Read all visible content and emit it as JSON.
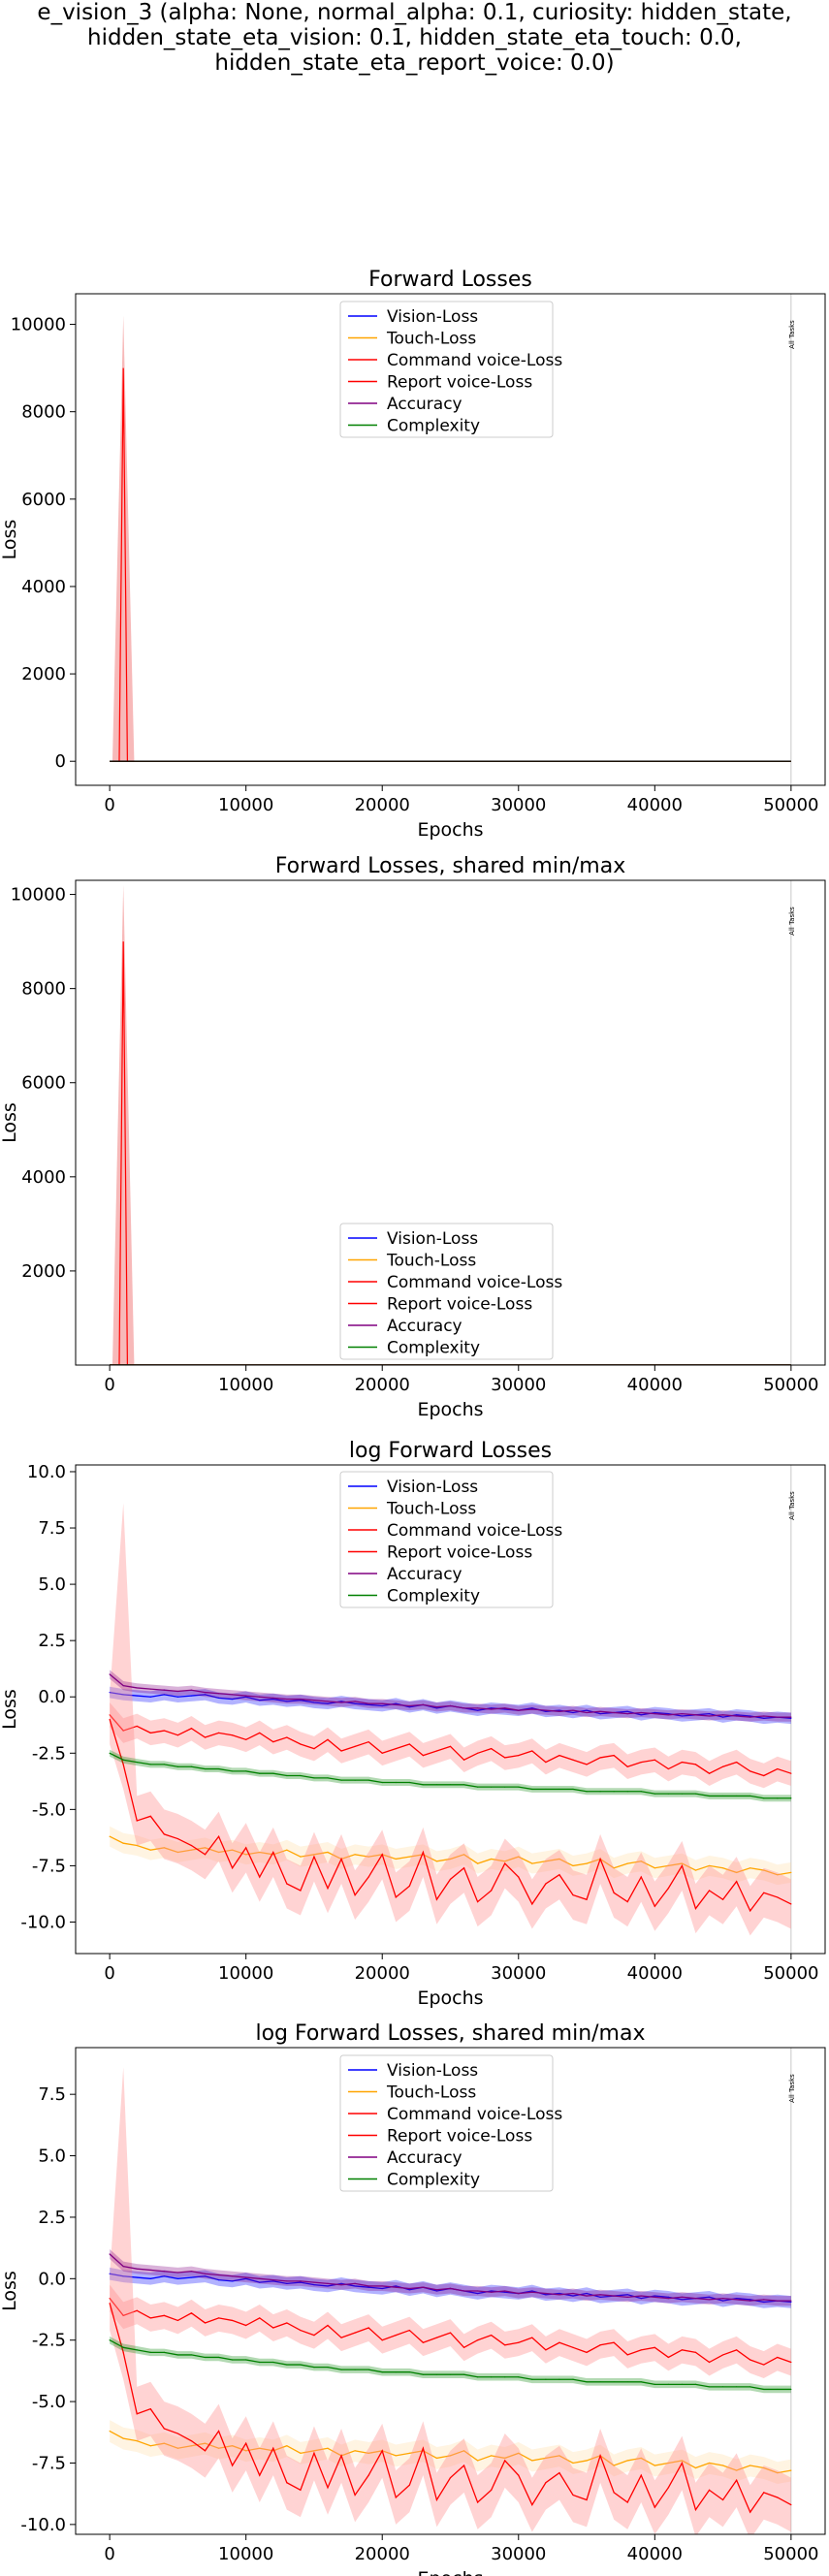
{
  "figure": {
    "suptitle_lines": [
      "e_vision_3 (alpha: None, normal_alpha: 0.1, curiosity: hidden_state,",
      "hidden_state_eta_vision: 0.1, hidden_state_eta_touch: 0.0,",
      "hidden_state_eta_report_voice: 0.0)"
    ]
  },
  "chart_data": [
    {
      "type": "line",
      "title": "Forward Losses",
      "xlabel": "Epochs",
      "ylabel": "Loss",
      "xlim": [
        -2500,
        52500
      ],
      "ylim": [
        -550,
        10700
      ],
      "xticks": [
        0,
        10000,
        20000,
        30000,
        40000,
        50000
      ],
      "yticks": [
        0,
        2000,
        4000,
        6000,
        8000,
        10000
      ],
      "legend_position": "upper center",
      "vline": {
        "x": 49999,
        "label": "All Tasks"
      },
      "series": [
        {
          "name": "Vision-Loss",
          "color": "#0000ff"
        },
        {
          "name": "Touch-Loss",
          "color": "#ffa500"
        },
        {
          "name": "Command voice-Loss",
          "color": "#ff0000"
        },
        {
          "name": "Report voice-Loss",
          "color": "#ff0000"
        },
        {
          "name": "Accuracy",
          "color": "#800080"
        },
        {
          "name": "Complexity",
          "color": "#008000"
        }
      ],
      "spike": {
        "x": 1000,
        "y": 9000,
        "band_high": 10200
      }
    },
    {
      "type": "line",
      "title": "Forward Losses, shared min/max",
      "xlabel": "Epochs",
      "ylabel": "Loss",
      "xlim": [
        -2500,
        52500
      ],
      "ylim": [
        0,
        10300
      ],
      "xticks": [
        0,
        10000,
        20000,
        30000,
        40000,
        50000
      ],
      "yticks": [
        2000,
        4000,
        6000,
        8000,
        10000
      ],
      "legend_position": "lower center",
      "vline": {
        "x": 49999,
        "label": "All Tasks"
      },
      "series": [
        {
          "name": "Vision-Loss",
          "color": "#0000ff"
        },
        {
          "name": "Touch-Loss",
          "color": "#ffa500"
        },
        {
          "name": "Command voice-Loss",
          "color": "#ff0000"
        },
        {
          "name": "Report voice-Loss",
          "color": "#ff0000"
        },
        {
          "name": "Accuracy",
          "color": "#800080"
        },
        {
          "name": "Complexity",
          "color": "#008000"
        }
      ],
      "spike": {
        "x": 1000,
        "y": 9000,
        "band_high": 10200
      }
    },
    {
      "type": "line",
      "title": "log Forward Losses",
      "xlabel": "Epochs",
      "ylabel": "Loss",
      "xlim": [
        -2500,
        52500
      ],
      "ylim": [
        -11.4,
        10.3
      ],
      "xticks": [
        0,
        10000,
        20000,
        30000,
        40000,
        50000
      ],
      "yticks": [
        -10.0,
        -7.5,
        -5.0,
        -2.5,
        0.0,
        2.5,
        5.0,
        7.5,
        10.0
      ],
      "legend_position": "upper center",
      "vline": {
        "x": 49999,
        "label": "All Tasks"
      },
      "x": [
        0,
        1000,
        2000,
        3000,
        4000,
        5000,
        6000,
        7000,
        8000,
        9000,
        10000,
        11000,
        12000,
        13000,
        14000,
        15000,
        16000,
        17000,
        18000,
        19000,
        20000,
        21000,
        22000,
        23000,
        24000,
        25000,
        26000,
        27000,
        28000,
        29000,
        30000,
        31000,
        32000,
        33000,
        34000,
        35000,
        36000,
        37000,
        38000,
        39000,
        40000,
        41000,
        42000,
        43000,
        44000,
        45000,
        46000,
        47000,
        48000,
        49000,
        50000
      ],
      "series": [
        {
          "name": "Vision-Loss",
          "color": "#0000ff",
          "values": [
            0.2,
            0.1,
            0.05,
            0.0,
            0.1,
            0.0,
            0.05,
            0.1,
            -0.05,
            -0.1,
            0.0,
            -0.15,
            -0.1,
            -0.2,
            -0.15,
            -0.25,
            -0.3,
            -0.2,
            -0.3,
            -0.35,
            -0.4,
            -0.3,
            -0.45,
            -0.35,
            -0.5,
            -0.4,
            -0.5,
            -0.6,
            -0.5,
            -0.55,
            -0.6,
            -0.5,
            -0.65,
            -0.6,
            -0.7,
            -0.6,
            -0.75,
            -0.7,
            -0.65,
            -0.8,
            -0.7,
            -0.75,
            -0.85,
            -0.8,
            -0.75,
            -0.9,
            -0.8,
            -0.85,
            -0.95,
            -0.9,
            -0.95
          ]
        },
        {
          "name": "Touch-Loss",
          "color": "#ffa500",
          "values": [
            -6.2,
            -6.5,
            -6.6,
            -6.8,
            -6.7,
            -6.9,
            -6.8,
            -6.7,
            -6.9,
            -6.8,
            -7.0,
            -6.9,
            -7.0,
            -6.8,
            -7.1,
            -7.0,
            -6.9,
            -7.2,
            -7.0,
            -7.1,
            -7.0,
            -7.2,
            -7.1,
            -7.0,
            -7.3,
            -7.2,
            -7.0,
            -7.4,
            -7.2,
            -7.3,
            -7.1,
            -7.4,
            -7.3,
            -7.2,
            -7.5,
            -7.4,
            -7.2,
            -7.6,
            -7.4,
            -7.3,
            -7.6,
            -7.5,
            -7.4,
            -7.7,
            -7.5,
            -7.6,
            -7.8,
            -7.6,
            -7.7,
            -7.9,
            -7.8
          ]
        },
        {
          "name": "Command voice-Loss",
          "color": "#ff0000",
          "values": [
            -0.8,
            -1.5,
            -1.3,
            -1.6,
            -1.5,
            -1.7,
            -1.4,
            -1.8,
            -1.6,
            -1.7,
            -1.9,
            -1.6,
            -2.0,
            -1.8,
            -2.1,
            -2.3,
            -1.9,
            -2.4,
            -2.2,
            -2.0,
            -2.5,
            -2.3,
            -2.1,
            -2.6,
            -2.4,
            -2.2,
            -2.8,
            -2.5,
            -2.3,
            -2.7,
            -2.6,
            -2.4,
            -2.9,
            -2.6,
            -2.8,
            -3.0,
            -2.7,
            -2.6,
            -3.1,
            -2.9,
            -2.8,
            -3.2,
            -2.9,
            -3.0,
            -3.4,
            -3.1,
            -2.9,
            -3.3,
            -3.5,
            -3.2,
            -3.4
          ]
        },
        {
          "name": "Report voice-Loss",
          "color": "#ff0000",
          "values": [
            -1.0,
            -3.0,
            -5.5,
            -5.3,
            -6.1,
            -6.3,
            -6.6,
            -7.0,
            -6.2,
            -7.6,
            -6.7,
            -8.0,
            -6.9,
            -8.3,
            -8.6,
            -7.1,
            -8.5,
            -7.2,
            -8.8,
            -8.0,
            -7.0,
            -8.9,
            -8.4,
            -6.9,
            -9.0,
            -8.1,
            -7.6,
            -9.1,
            -8.6,
            -7.4,
            -8.0,
            -9.2,
            -8.3,
            -7.9,
            -8.8,
            -9.0,
            -7.2,
            -8.7,
            -9.1,
            -8.0,
            -9.3,
            -8.5,
            -7.5,
            -9.4,
            -8.6,
            -9.0,
            -8.2,
            -9.5,
            -8.7,
            -8.9,
            -9.2
          ]
        },
        {
          "name": "Accuracy",
          "color": "#800080",
          "values": [
            1.0,
            0.5,
            0.4,
            0.35,
            0.3,
            0.25,
            0.3,
            0.2,
            0.15,
            0.1,
            0.05,
            0.0,
            -0.05,
            -0.1,
            -0.1,
            -0.15,
            -0.2,
            -0.25,
            -0.2,
            -0.3,
            -0.3,
            -0.35,
            -0.4,
            -0.35,
            -0.45,
            -0.4,
            -0.5,
            -0.5,
            -0.55,
            -0.5,
            -0.6,
            -0.55,
            -0.6,
            -0.65,
            -0.6,
            -0.7,
            -0.65,
            -0.7,
            -0.75,
            -0.7,
            -0.75,
            -0.8,
            -0.75,
            -0.8,
            -0.85,
            -0.8,
            -0.85,
            -0.9,
            -0.85,
            -0.9,
            -0.9
          ]
        },
        {
          "name": "Complexity",
          "color": "#008000",
          "values": [
            -2.5,
            -2.8,
            -2.9,
            -3.0,
            -3.0,
            -3.1,
            -3.1,
            -3.2,
            -3.2,
            -3.3,
            -3.3,
            -3.4,
            -3.4,
            -3.5,
            -3.5,
            -3.6,
            -3.6,
            -3.7,
            -3.7,
            -3.7,
            -3.8,
            -3.8,
            -3.8,
            -3.9,
            -3.9,
            -3.9,
            -3.9,
            -4.0,
            -4.0,
            -4.0,
            -4.0,
            -4.1,
            -4.1,
            -4.1,
            -4.1,
            -4.2,
            -4.2,
            -4.2,
            -4.2,
            -4.2,
            -4.3,
            -4.3,
            -4.3,
            -4.3,
            -4.4,
            -4.4,
            -4.4,
            -4.4,
            -4.5,
            -4.5,
            -4.5
          ]
        }
      ]
    },
    {
      "type": "line",
      "title": "log Forward Losses, shared min/max",
      "xlabel": "Epochs",
      "ylabel": "Loss",
      "xlim": [
        -2500,
        52500
      ],
      "ylim": [
        -10.4,
        9.4
      ],
      "xticks": [
        0,
        10000,
        20000,
        30000,
        40000,
        50000
      ],
      "yticks": [
        -10.0,
        -7.5,
        -5.0,
        -2.5,
        0.0,
        2.5,
        5.0,
        7.5
      ],
      "legend_position": "upper center",
      "vline": {
        "x": 49999,
        "label": "All Tasks"
      },
      "x": [
        0,
        1000,
        2000,
        3000,
        4000,
        5000,
        6000,
        7000,
        8000,
        9000,
        10000,
        11000,
        12000,
        13000,
        14000,
        15000,
        16000,
        17000,
        18000,
        19000,
        20000,
        21000,
        22000,
        23000,
        24000,
        25000,
        26000,
        27000,
        28000,
        29000,
        30000,
        31000,
        32000,
        33000,
        34000,
        35000,
        36000,
        37000,
        38000,
        39000,
        40000,
        41000,
        42000,
        43000,
        44000,
        45000,
        46000,
        47000,
        48000,
        49000,
        50000
      ],
      "series": [
        {
          "name": "Vision-Loss",
          "color": "#0000ff",
          "values": [
            0.2,
            0.1,
            0.05,
            0.0,
            0.1,
            0.0,
            0.05,
            0.1,
            -0.05,
            -0.1,
            0.0,
            -0.15,
            -0.1,
            -0.2,
            -0.15,
            -0.25,
            -0.3,
            -0.2,
            -0.3,
            -0.35,
            -0.4,
            -0.3,
            -0.45,
            -0.35,
            -0.5,
            -0.4,
            -0.5,
            -0.6,
            -0.5,
            -0.55,
            -0.6,
            -0.5,
            -0.65,
            -0.6,
            -0.7,
            -0.6,
            -0.75,
            -0.7,
            -0.65,
            -0.8,
            -0.7,
            -0.75,
            -0.85,
            -0.8,
            -0.75,
            -0.9,
            -0.8,
            -0.85,
            -0.95,
            -0.9,
            -0.95
          ]
        },
        {
          "name": "Touch-Loss",
          "color": "#ffa500",
          "values": [
            -6.2,
            -6.5,
            -6.6,
            -6.8,
            -6.7,
            -6.9,
            -6.8,
            -6.7,
            -6.9,
            -6.8,
            -7.0,
            -6.9,
            -7.0,
            -6.8,
            -7.1,
            -7.0,
            -6.9,
            -7.2,
            -7.0,
            -7.1,
            -7.0,
            -7.2,
            -7.1,
            -7.0,
            -7.3,
            -7.2,
            -7.0,
            -7.4,
            -7.2,
            -7.3,
            -7.1,
            -7.4,
            -7.3,
            -7.2,
            -7.5,
            -7.4,
            -7.2,
            -7.6,
            -7.4,
            -7.3,
            -7.6,
            -7.5,
            -7.4,
            -7.7,
            -7.5,
            -7.6,
            -7.8,
            -7.6,
            -7.7,
            -7.9,
            -7.8
          ]
        },
        {
          "name": "Command voice-Loss",
          "color": "#ff0000",
          "values": [
            -0.8,
            -1.5,
            -1.3,
            -1.6,
            -1.5,
            -1.7,
            -1.4,
            -1.8,
            -1.6,
            -1.7,
            -1.9,
            -1.6,
            -2.0,
            -1.8,
            -2.1,
            -2.3,
            -1.9,
            -2.4,
            -2.2,
            -2.0,
            -2.5,
            -2.3,
            -2.1,
            -2.6,
            -2.4,
            -2.2,
            -2.8,
            -2.5,
            -2.3,
            -2.7,
            -2.6,
            -2.4,
            -2.9,
            -2.6,
            -2.8,
            -3.0,
            -2.7,
            -2.6,
            -3.1,
            -2.9,
            -2.8,
            -3.2,
            -2.9,
            -3.0,
            -3.4,
            -3.1,
            -2.9,
            -3.3,
            -3.5,
            -3.2,
            -3.4
          ]
        },
        {
          "name": "Report voice-Loss",
          "color": "#ff0000",
          "values": [
            -1.0,
            -3.0,
            -5.5,
            -5.3,
            -6.1,
            -6.3,
            -6.6,
            -7.0,
            -6.2,
            -7.6,
            -6.7,
            -8.0,
            -6.9,
            -8.3,
            -8.6,
            -7.1,
            -8.5,
            -7.2,
            -8.8,
            -8.0,
            -7.0,
            -8.9,
            -8.4,
            -6.9,
            -9.0,
            -8.1,
            -7.6,
            -9.1,
            -8.6,
            -7.4,
            -8.0,
            -9.2,
            -8.3,
            -7.9,
            -8.8,
            -9.0,
            -7.2,
            -8.7,
            -9.1,
            -8.0,
            -9.3,
            -8.5,
            -7.5,
            -9.4,
            -8.6,
            -9.0,
            -8.2,
            -9.5,
            -8.7,
            -8.9,
            -9.2
          ]
        },
        {
          "name": "Accuracy",
          "color": "#800080",
          "values": [
            1.0,
            0.5,
            0.4,
            0.35,
            0.3,
            0.25,
            0.3,
            0.2,
            0.15,
            0.1,
            0.05,
            0.0,
            -0.05,
            -0.1,
            -0.1,
            -0.15,
            -0.2,
            -0.25,
            -0.2,
            -0.3,
            -0.3,
            -0.35,
            -0.4,
            -0.35,
            -0.45,
            -0.4,
            -0.5,
            -0.5,
            -0.55,
            -0.5,
            -0.6,
            -0.55,
            -0.6,
            -0.65,
            -0.6,
            -0.7,
            -0.65,
            -0.7,
            -0.75,
            -0.7,
            -0.75,
            -0.8,
            -0.75,
            -0.8,
            -0.85,
            -0.8,
            -0.85,
            -0.9,
            -0.85,
            -0.9,
            -0.9
          ]
        },
        {
          "name": "Complexity",
          "color": "#008000",
          "values": [
            -2.5,
            -2.8,
            -2.9,
            -3.0,
            -3.0,
            -3.1,
            -3.1,
            -3.2,
            -3.2,
            -3.3,
            -3.3,
            -3.4,
            -3.4,
            -3.5,
            -3.5,
            -3.6,
            -3.6,
            -3.7,
            -3.7,
            -3.7,
            -3.8,
            -3.8,
            -3.8,
            -3.9,
            -3.9,
            -3.9,
            -3.9,
            -4.0,
            -4.0,
            -4.0,
            -4.0,
            -4.1,
            -4.1,
            -4.1,
            -4.1,
            -4.2,
            -4.2,
            -4.2,
            -4.2,
            -4.2,
            -4.3,
            -4.3,
            -4.3,
            -4.3,
            -4.4,
            -4.4,
            -4.4,
            -4.4,
            -4.5,
            -4.5,
            -4.5
          ]
        }
      ]
    }
  ]
}
